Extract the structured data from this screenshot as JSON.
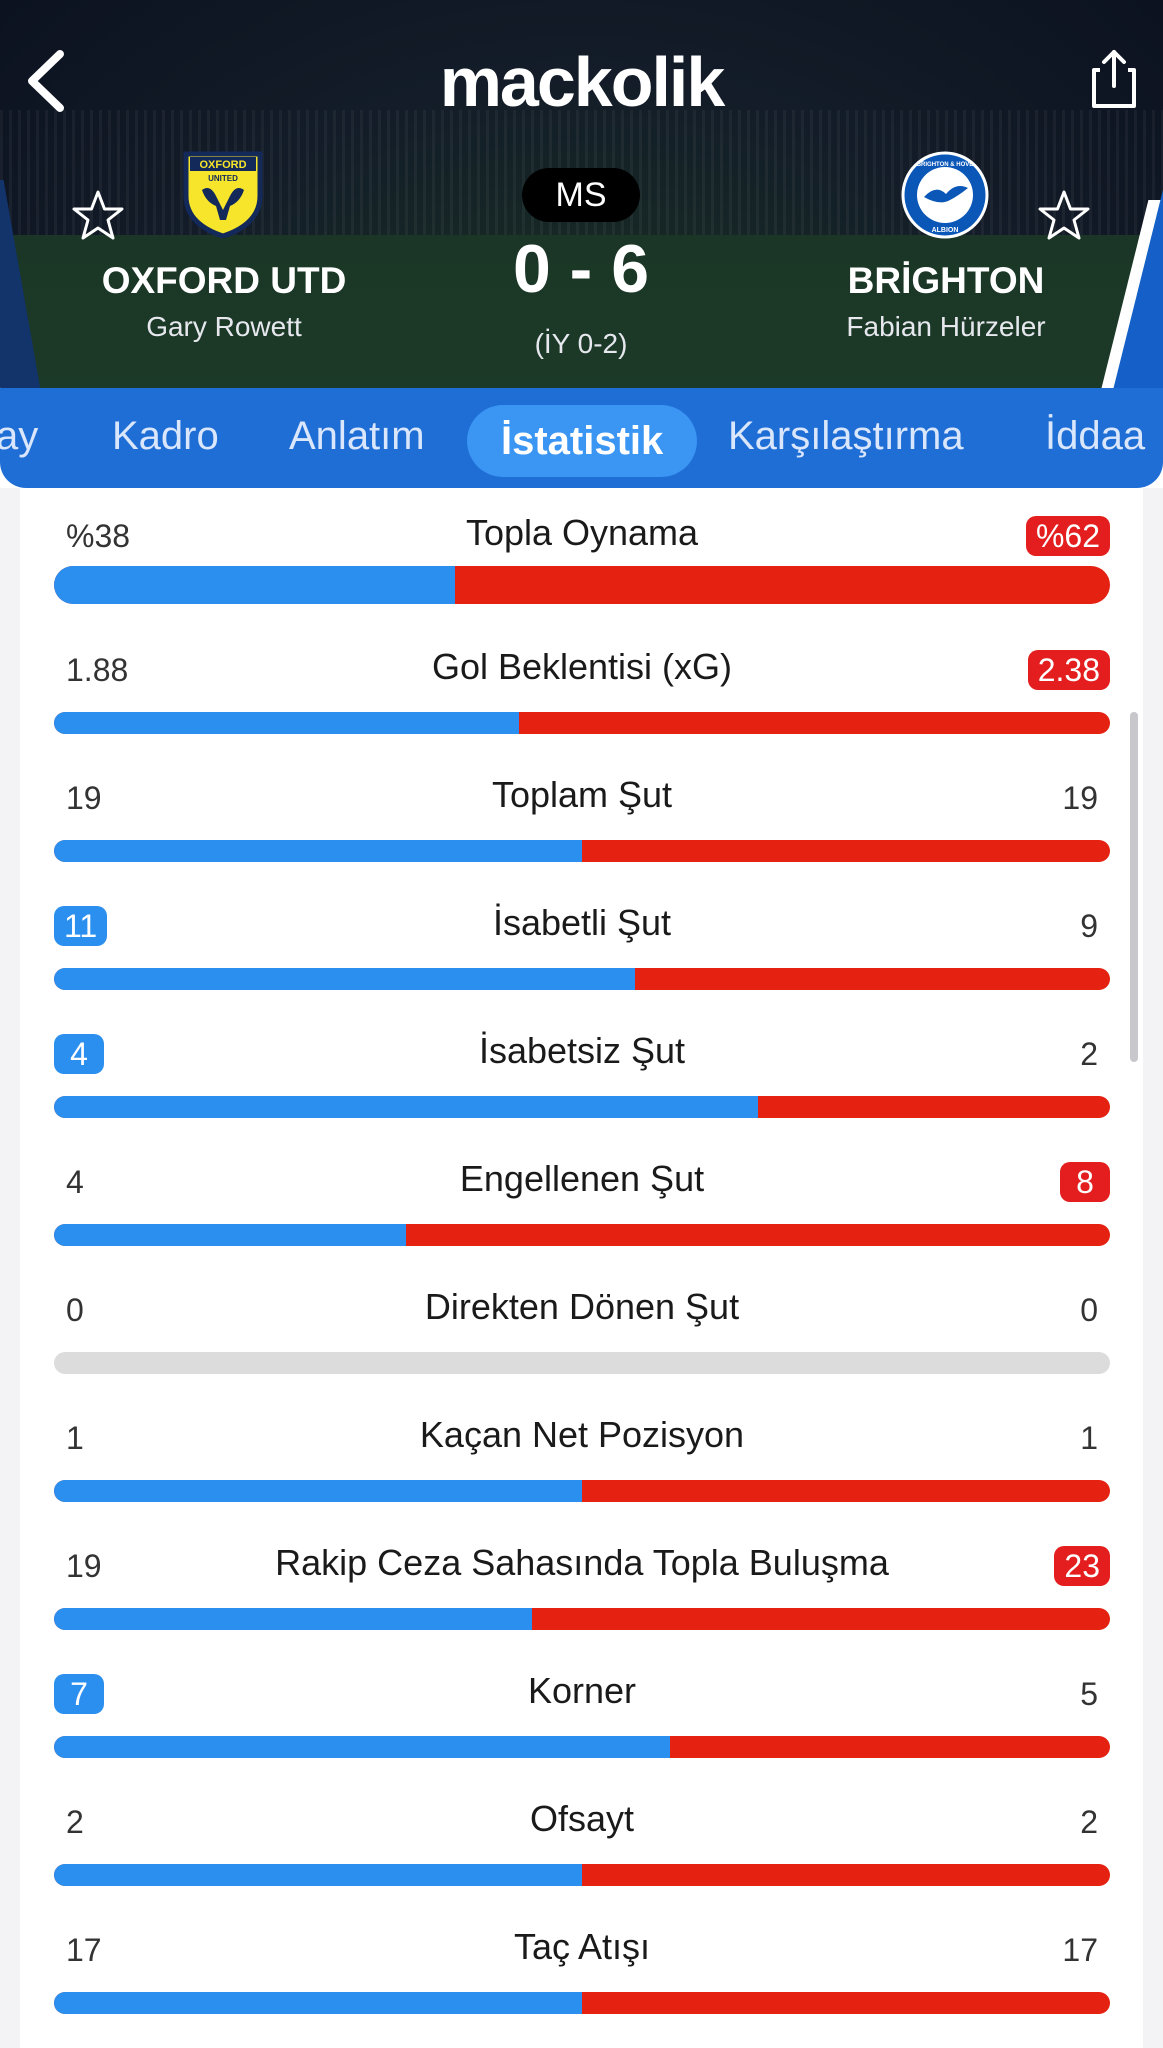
{
  "app": {
    "logo": "mackolik"
  },
  "match": {
    "status": "MS",
    "score": "0 - 6",
    "halftime": "(İY 0-2)",
    "home": {
      "name": "OXFORD UTD",
      "coach": "Gary Rowett",
      "logo_text_top": "OXFORD",
      "logo_text_bottom": "UNITED"
    },
    "away": {
      "name": "BRİGHTON",
      "coach": "Fabian Hürzeler",
      "logo_text_top": "BRIGHTON & HOVE",
      "logo_text_bottom": "ALBION"
    }
  },
  "tabs": [
    {
      "label": "ay"
    },
    {
      "label": "Kadro"
    },
    {
      "label": "Anlatım"
    },
    {
      "label": "İstatistik",
      "active": true
    },
    {
      "label": "Karşılaştırma"
    },
    {
      "label": "İddaa"
    }
  ],
  "stats": [
    {
      "title": "Topla Oynama",
      "left": "%38",
      "right": "%62",
      "lead": "right",
      "ratio": 0.38
    },
    {
      "title": "Gol Beklentisi (xG)",
      "left": "1.88",
      "right": "2.38",
      "lead": "right",
      "ratio": 0.44
    },
    {
      "title": "Toplam Şut",
      "left": "19",
      "right": "19",
      "lead": "none",
      "ratio": 0.5
    },
    {
      "title": "İsabetli Şut",
      "left": "11",
      "right": "9",
      "lead": "left",
      "ratio": 0.55
    },
    {
      "title": "İsabetsiz Şut",
      "left": "4",
      "right": "2",
      "lead": "left",
      "ratio": 0.6667
    },
    {
      "title": "Engellenen Şut",
      "left": "4",
      "right": "8",
      "lead": "right",
      "ratio": 0.3333
    },
    {
      "title": "Direkten Dönen Şut",
      "left": "0",
      "right": "0",
      "lead": "none",
      "ratio": null
    },
    {
      "title": "Kaçan Net Pozisyon",
      "left": "1",
      "right": "1",
      "lead": "none",
      "ratio": 0.5
    },
    {
      "title": "Rakip Ceza Sahasında Topla Buluşma",
      "left": "19",
      "right": "23",
      "lead": "right",
      "ratio": 0.4524
    },
    {
      "title": "Korner",
      "left": "7",
      "right": "5",
      "lead": "left",
      "ratio": 0.5833
    },
    {
      "title": "Ofsayt",
      "left": "2",
      "right": "2",
      "lead": "none",
      "ratio": 0.5
    },
    {
      "title": "Taç Atışı",
      "left": "17",
      "right": "17",
      "lead": "none",
      "ratio": 0.5
    }
  ],
  "colors": {
    "home_bar": "#2b8ff0",
    "away_bar": "#e52212",
    "tab_bar": "#1f6ed6",
    "active_tab": "#3a95f3"
  }
}
